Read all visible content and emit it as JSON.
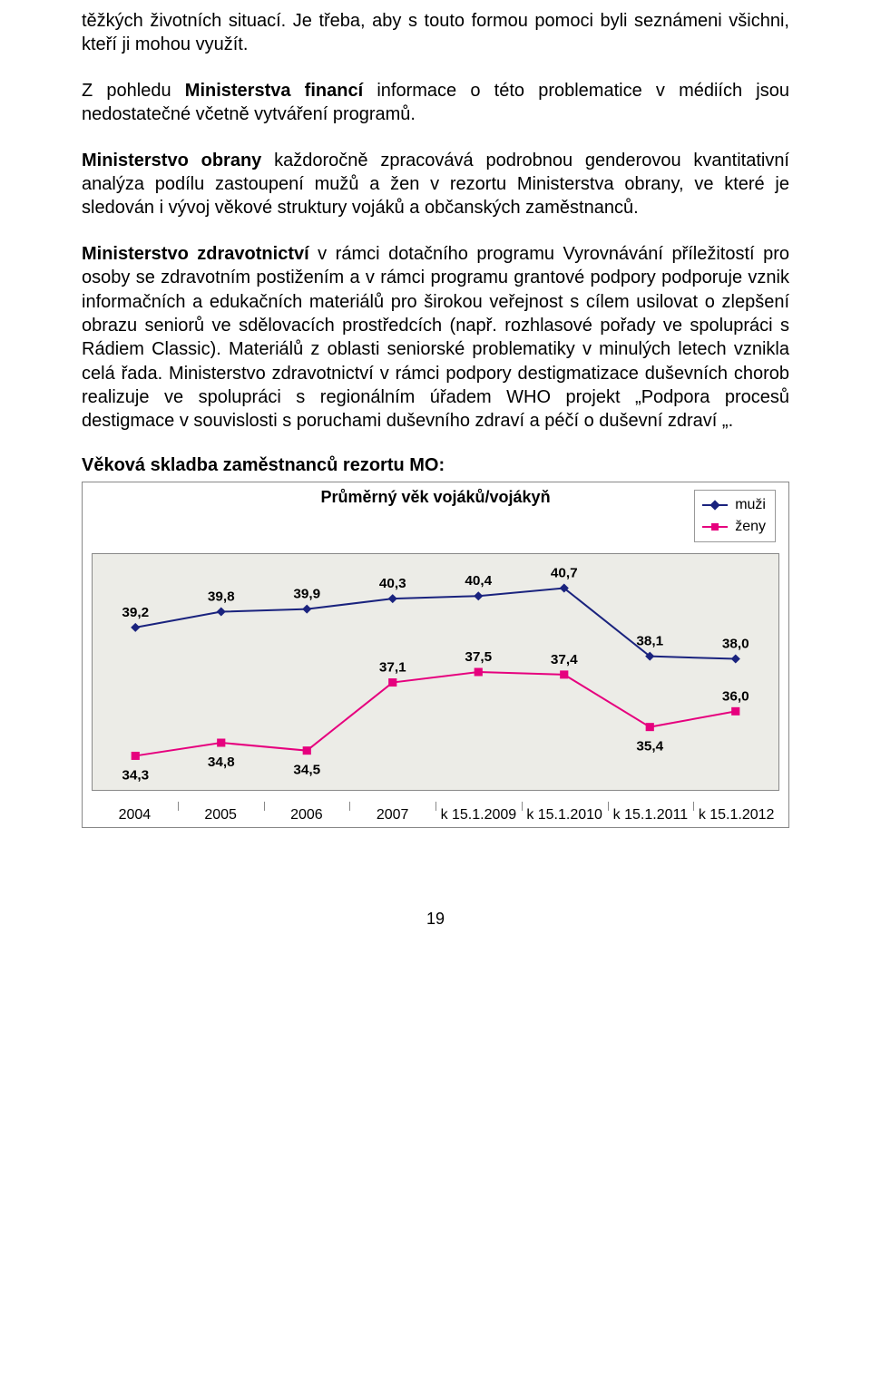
{
  "paragraphs": {
    "p1": "těžkých životních situací. Je třeba, aby s touto formou pomoci byli seznámeni všichni, kteří ji mohou využít.",
    "p2_prefix": "Z pohledu ",
    "p2_bold": "Ministerstva financí",
    "p2_rest": " informace o této problematice v médiích jsou nedostatečné včetně vytváření programů.",
    "p3_bold": "Ministerstvo obrany",
    "p3_rest": " každoročně zpracovává podrobnou genderovou kvantitativní analýza podílu zastoupení mužů a žen v rezortu Ministerstva obrany, ve které je sledován i vývoj věkové struktury vojáků a občanských zaměstnanců.",
    "p4_bold": "Ministerstvo zdravotnictví",
    "p4_rest": " v rámci dotačního programu Vyrovnávání příležitostí pro osoby se zdravotním postižením a v rámci programu grantové podpory podporuje vznik informačních a edukačních materiálů pro širokou veřejnost s cílem usilovat o zlepšení obrazu seniorů ve sdělovacích prostředcích (např. rozhlasové pořady ve spolupráci s Rádiem Classic). Materiálů z oblasti seniorské problematiky v minulých letech vznikla celá řada. Ministerstvo zdravotnictví v rámci podpory destigmatizace duševních chorob realizuje ve spolupráci s regionálním úřadem WHO projekt „Podpora procesů destigmace v souvislosti s poruchami duševního zdraví a péčí o duševní zdraví „."
  },
  "section_heading": "Věková skladba zaměstnanců rezortu MO:",
  "chart": {
    "type": "line",
    "title": "Průměrný věk vojáků/vojákyň",
    "legend": {
      "series1": {
        "label": "muži",
        "color": "#1a237e"
      },
      "series2": {
        "label": "ženy",
        "color": "#e6007e"
      }
    },
    "x_labels": [
      "2004",
      "2005",
      "2006",
      "2007",
      "k 15.1.2009",
      "k 15.1.2010",
      "k 15.1.2011",
      "k 15.1.2012"
    ],
    "series_men": {
      "color": "#1a237e",
      "marker": "diamond",
      "marker_size": 10,
      "line_width": 2,
      "values": [
        39.2,
        39.8,
        39.9,
        40.3,
        40.4,
        40.7,
        38.1,
        38.0
      ],
      "labels": [
        "39,2",
        "39,8",
        "39,9",
        "40,3",
        "40,4",
        "40,7",
        "38,1",
        "38,0"
      ]
    },
    "series_women": {
      "color": "#e6007e",
      "marker": "square",
      "marker_size": 9,
      "line_width": 2,
      "values": [
        34.3,
        34.8,
        34.5,
        37.1,
        37.5,
        37.4,
        35.4,
        36.0
      ],
      "labels": [
        "34,3",
        "34,8",
        "34,5",
        "37,1",
        "37,5",
        "37,4",
        "35,4",
        "36,0"
      ]
    },
    "plot_bg": "#ecece7",
    "border_color": "#888",
    "ylim": [
      33,
      42
    ],
    "label_fontsize": 15,
    "label_fontweight": "bold"
  },
  "page_number": "19"
}
